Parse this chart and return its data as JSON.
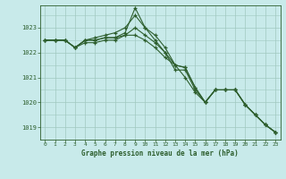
{
  "title": "Graphe pression niveau de la mer (hPa)",
  "background_color": "#c8eaea",
  "plot_bg_color": "#c8eaea",
  "grid_color": "#a0c8c0",
  "line_color": "#2d5e2d",
  "ylim": [
    1018.5,
    1023.9
  ],
  "xlim": [
    -0.5,
    23.5
  ],
  "yticks": [
    1019,
    1020,
    1021,
    1022,
    1023
  ],
  "xticks": [
    0,
    1,
    2,
    3,
    4,
    5,
    6,
    7,
    8,
    9,
    10,
    11,
    12,
    13,
    14,
    15,
    16,
    17,
    18,
    19,
    20,
    21,
    22,
    23
  ],
  "series": [
    [
      1022.5,
      1022.5,
      1022.5,
      1022.2,
      1022.5,
      1022.5,
      1022.6,
      1022.6,
      1022.7,
      1023.0,
      1022.7,
      1022.4,
      1022.0,
      1021.5,
      1021.4,
      1020.6,
      1020.0,
      1020.5,
      1020.5,
      1020.5,
      1019.9,
      1019.5,
      1019.1,
      1018.8
    ],
    [
      1022.5,
      1022.5,
      1022.5,
      1022.2,
      1022.5,
      1022.6,
      1022.7,
      1022.8,
      1023.0,
      1023.5,
      1023.0,
      1022.7,
      1022.2,
      1021.5,
      1021.4,
      1020.6,
      1020.0,
      1020.5,
      1020.5,
      1020.5,
      1019.9,
      1019.5,
      1019.1,
      1018.8
    ],
    [
      1022.5,
      1022.5,
      1022.5,
      1022.2,
      1022.5,
      1022.5,
      1022.6,
      1022.6,
      1022.8,
      1023.8,
      1023.0,
      1022.5,
      1022.0,
      1021.3,
      1021.3,
      1020.5,
      1020.0,
      1020.5,
      1020.5,
      1020.5,
      1019.9,
      1019.5,
      1019.1,
      1018.8
    ],
    [
      1022.5,
      1022.5,
      1022.5,
      1022.2,
      1022.4,
      1022.4,
      1022.5,
      1022.5,
      1022.7,
      1022.7,
      1022.5,
      1022.2,
      1021.8,
      1021.5,
      1021.0,
      1020.4,
      1020.0,
      1020.5,
      1020.5,
      1020.5,
      1019.9,
      1019.5,
      1019.1,
      1018.8
    ]
  ]
}
